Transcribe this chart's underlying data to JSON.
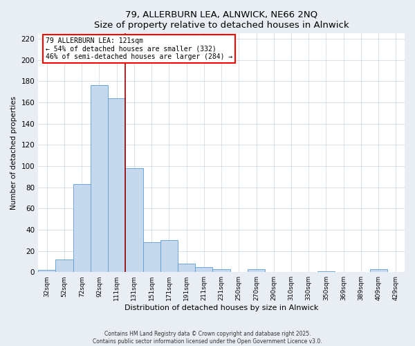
{
  "title": "79, ALLERBURN LEA, ALNWICK, NE66 2NQ",
  "subtitle": "Size of property relative to detached houses in Alnwick",
  "xlabel": "Distribution of detached houses by size in Alnwick",
  "ylabel": "Number of detached properties",
  "bar_labels": [
    "32sqm",
    "52sqm",
    "72sqm",
    "92sqm",
    "111sqm",
    "131sqm",
    "151sqm",
    "171sqm",
    "191sqm",
    "211sqm",
    "231sqm",
    "250sqm",
    "270sqm",
    "290sqm",
    "310sqm",
    "330sqm",
    "350sqm",
    "369sqm",
    "389sqm",
    "409sqm",
    "429sqm"
  ],
  "bar_values": [
    2,
    12,
    83,
    176,
    164,
    98,
    28,
    30,
    8,
    5,
    3,
    0,
    3,
    0,
    0,
    0,
    1,
    0,
    0,
    3,
    0
  ],
  "bar_color": "#c5d8ed",
  "bar_edge_color": "#5b9bd5",
  "property_line_x": 4.5,
  "annotation_line1": "79 ALLERBURN LEA: 121sqm",
  "annotation_line2": "← 54% of detached houses are smaller (332)",
  "annotation_line3": "46% of semi-detached houses are larger (284) →",
  "ylim": [
    0,
    225
  ],
  "yticks": [
    0,
    20,
    40,
    60,
    80,
    100,
    120,
    140,
    160,
    180,
    200,
    220
  ],
  "footer_line1": "Contains HM Land Registry data © Crown copyright and database right 2025.",
  "footer_line2": "Contains public sector information licensed under the Open Government Licence v3.0.",
  "background_color": "#e8eef4",
  "plot_background_color": "#ffffff"
}
